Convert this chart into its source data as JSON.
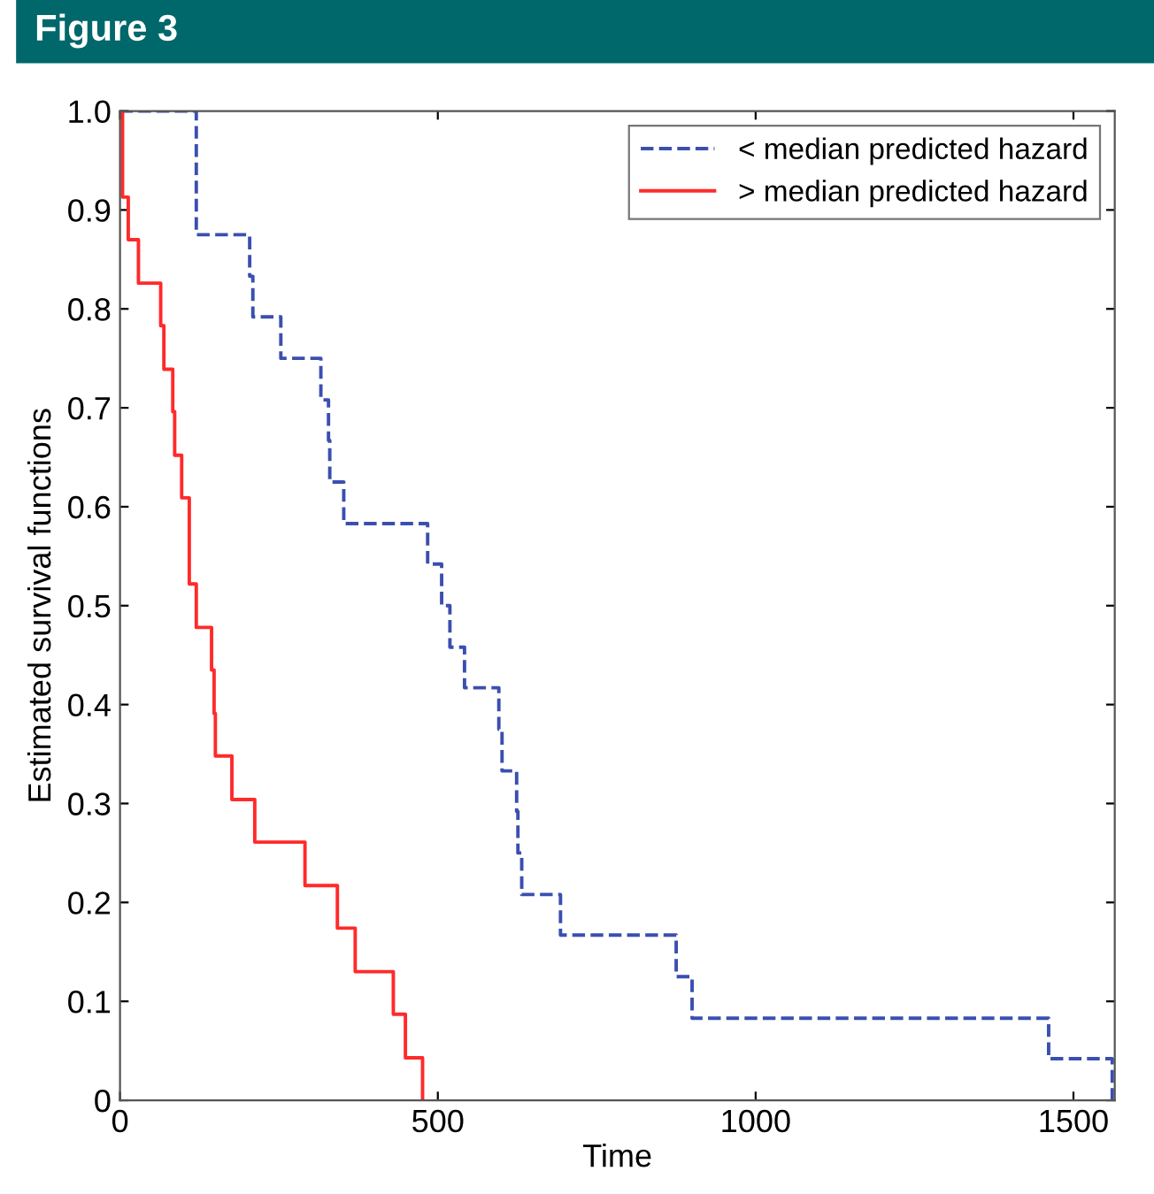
{
  "chart_data": {
    "type": "step",
    "title": "Figure 3",
    "xlabel": "Time",
    "ylabel": "Estimated survival functions",
    "xlim": [
      0,
      1565
    ],
    "xticks": [
      0,
      500,
      1000,
      1500
    ],
    "ylim": [
      0,
      1
    ],
    "yticks": [
      0,
      0.1,
      0.2,
      0.3,
      0.4,
      0.5,
      0.6,
      0.7,
      0.8,
      0.9,
      {
        "value": 1,
        "label": "1.0"
      }
    ],
    "grid": false,
    "legend": "top right",
    "series": [
      {
        "name": "< median predicted hazard",
        "color": "#3a4fb0",
        "line_style": "dashed",
        "x": [
          0,
          120,
          204,
          209,
          253,
          316,
          328,
          330,
          352,
          484,
          506,
          519,
          542,
          596,
          601,
          624,
          626,
          632,
          693,
          875,
          900,
          1461,
          1561
        ],
        "values": [
          1,
          0.875,
          0.833,
          0.792,
          0.75,
          0.708,
          0.667,
          0.625,
          0.583,
          0.542,
          0.5,
          0.458,
          0.417,
          0.375,
          0.333,
          0.292,
          0.25,
          0.208,
          0.167,
          0.125,
          0.083,
          0.042,
          0
        ]
      },
      {
        "name": "> median predicted hazard",
        "color": "#ff2a2a",
        "line_style": "solid",
        "x": [
          0,
          4,
          13,
          29,
          64,
          69,
          83,
          86,
          97,
          109,
          120,
          144,
          148,
          150,
          176,
          212,
          291,
          342,
          370,
          430,
          449,
          476
        ],
        "values": [
          1,
          0.913,
          0.87,
          0.826,
          0.783,
          0.739,
          0.696,
          0.652,
          0.609,
          0.522,
          0.478,
          0.435,
          0.391,
          0.348,
          0.304,
          0.261,
          0.217,
          0.174,
          0.13,
          0.087,
          0.043,
          0
        ]
      }
    ]
  }
}
